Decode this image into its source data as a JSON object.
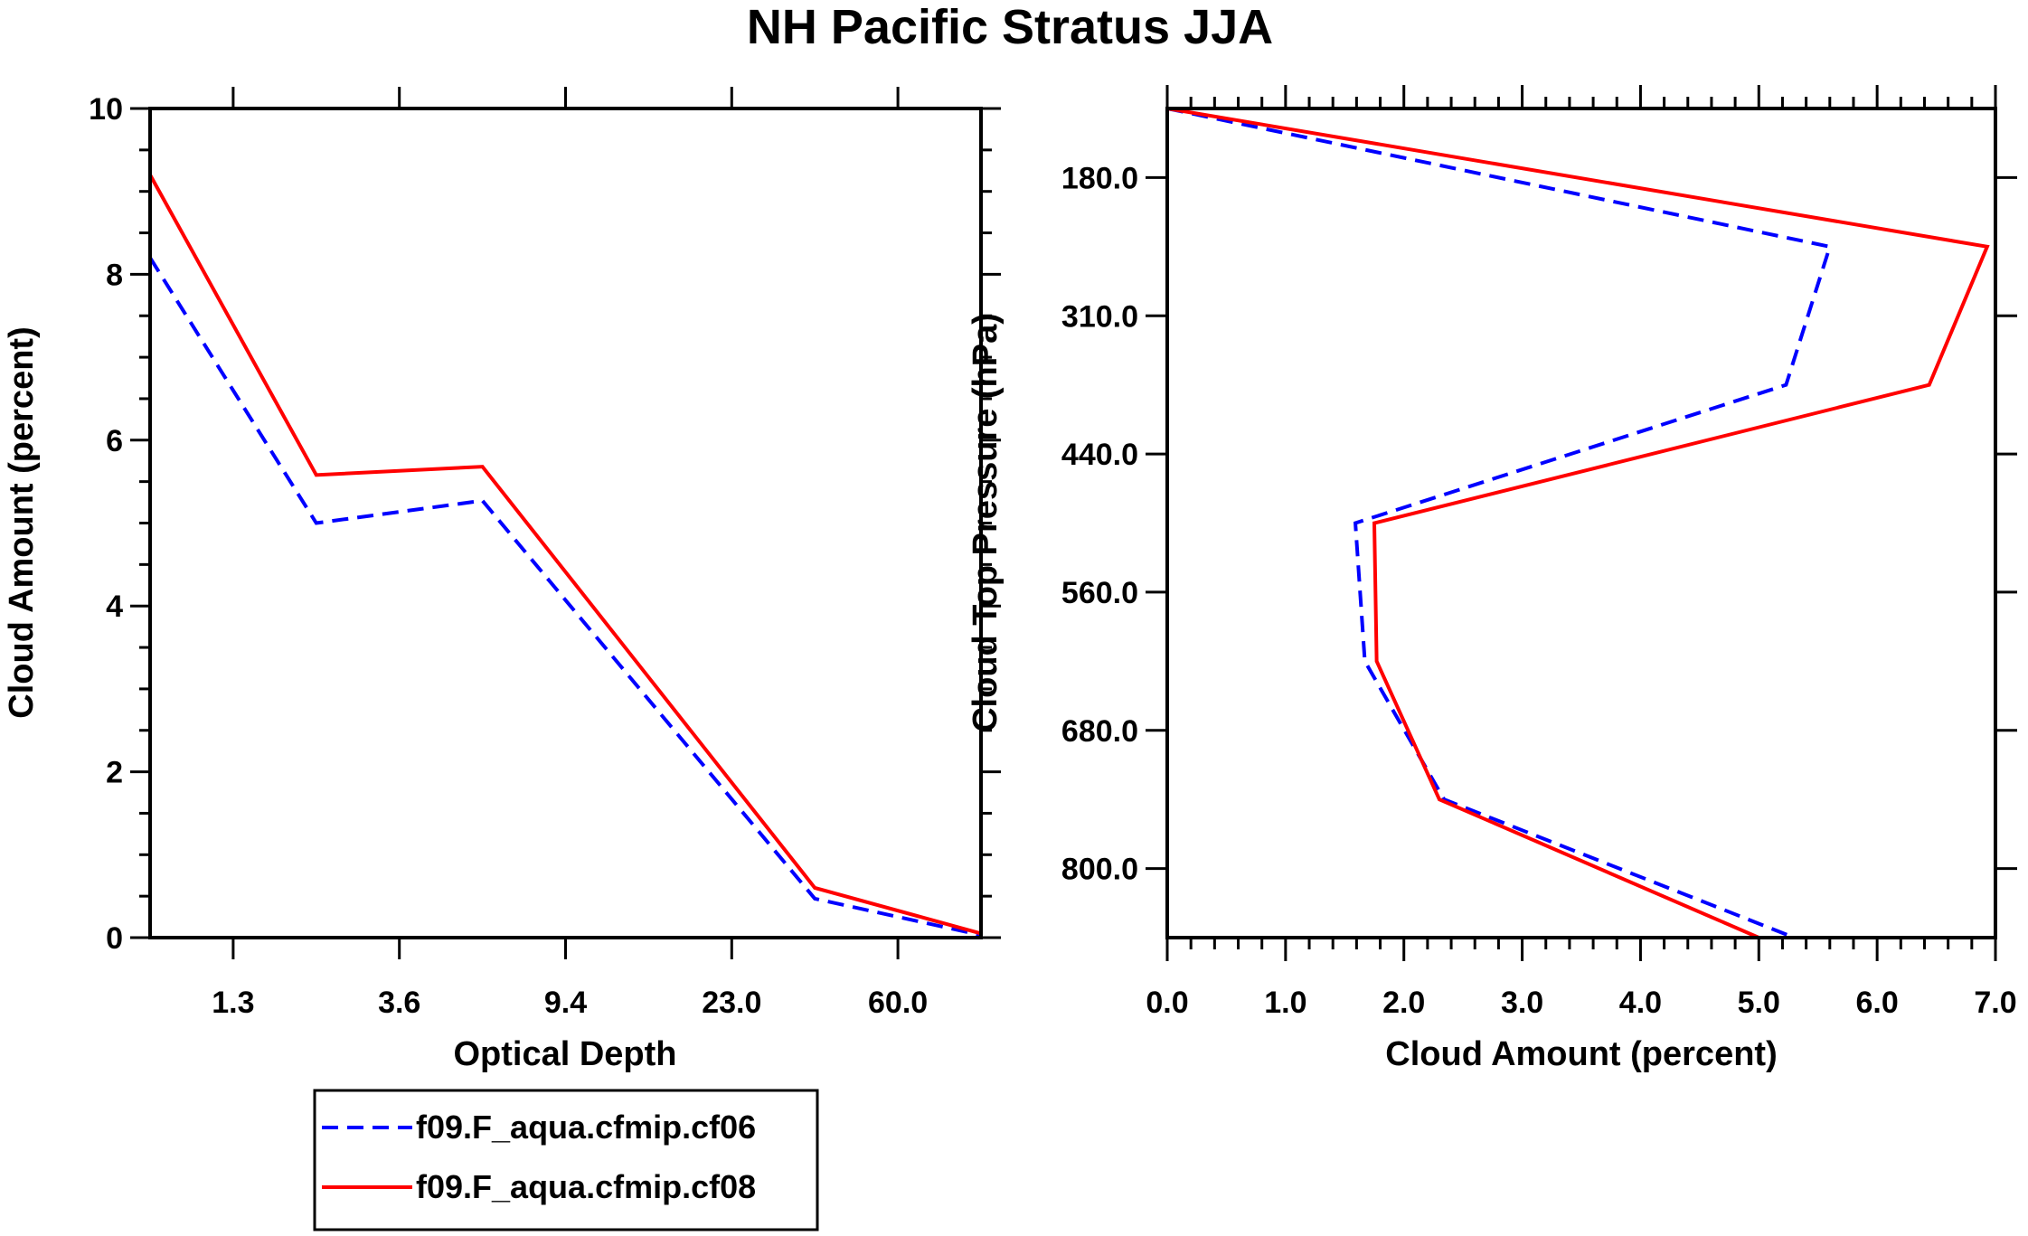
{
  "title": "NH Pacific Stratus JJA",
  "colors": {
    "cf06": "#0000ff",
    "cf08": "#ff0000",
    "axis": "#000000"
  },
  "legend": {
    "placement": "bottom-left",
    "entries": [
      {
        "label": "f09.F_aqua.cfmip.cf06",
        "style": "dashed",
        "color": "#0000ff"
      },
      {
        "label": "f09.F_aqua.cfmip.cf08",
        "style": "solid",
        "color": "#ff0000"
      }
    ]
  },
  "chart_data": [
    {
      "type": "line",
      "xlabel": "Optical Depth",
      "ylabel": "Cloud Amount (percent)",
      "x_index": [
        0,
        1,
        2,
        3,
        4,
        5
      ],
      "xlim": [
        0,
        5
      ],
      "x_tick_positions": [
        0.5,
        1.5,
        2.5,
        3.5,
        4.5
      ],
      "x_tick_labels": [
        "1.3",
        "3.6",
        "9.4",
        "23.0",
        "60.0"
      ],
      "ylim": [
        0,
        10
      ],
      "y_ticks": [
        0,
        2,
        4,
        6,
        8,
        10
      ],
      "y_tick_labels": [
        "0",
        "2",
        "4",
        "6",
        "8",
        "10"
      ],
      "series": [
        {
          "name": "f09.F_aqua.cfmip.cf06",
          "values": [
            8.2,
            5.0,
            5.27,
            2.87,
            0.47,
            0.03
          ]
        },
        {
          "name": "f09.F_aqua.cfmip.cf08",
          "values": [
            9.2,
            5.58,
            5.68,
            3.14,
            0.6,
            0.05
          ]
        }
      ]
    },
    {
      "type": "line",
      "xlabel": "Cloud Amount (percent)",
      "ylabel": "Cloud Top Pressure (hPa)",
      "xlim": [
        0,
        7
      ],
      "x_ticks": [
        0,
        1,
        2,
        3,
        4,
        5,
        6,
        7
      ],
      "x_tick_labels": [
        "0.0",
        "1.0",
        "2.0",
        "3.0",
        "4.0",
        "5.0",
        "6.0",
        "7.0"
      ],
      "y_index": [
        0,
        1,
        2,
        3,
        4,
        5,
        6
      ],
      "ylim": [
        0,
        6
      ],
      "y_tick_positions": [
        0.5,
        1.5,
        2.5,
        3.5,
        4.5,
        5.5
      ],
      "y_tick_labels": [
        "180.0",
        "310.0",
        "440.0",
        "560.0",
        "680.0",
        "800.0"
      ],
      "series": [
        {
          "name": "f09.F_aqua.cfmip.cf06",
          "values": [
            0.0,
            5.6,
            5.23,
            1.59,
            1.67,
            2.34,
            5.3
          ]
        },
        {
          "name": "f09.F_aqua.cfmip.cf08",
          "values": [
            0.0,
            6.93,
            6.44,
            1.75,
            1.77,
            2.3,
            5.0
          ]
        }
      ]
    }
  ]
}
